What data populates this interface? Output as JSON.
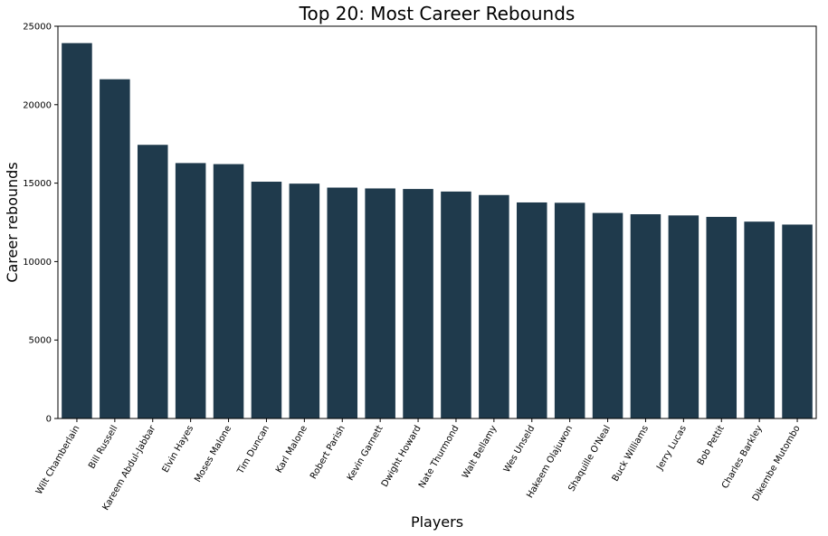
{
  "chart_data": {
    "type": "bar",
    "title": "Top 20: Most Career Rebounds",
    "xlabel": "Players",
    "ylabel": "Career rebounds",
    "ylim": [
      0,
      25000
    ],
    "yticks": [
      0,
      5000,
      10000,
      15000,
      20000,
      25000
    ],
    "grid": false,
    "bar_color": "#1f3a4c",
    "categories": [
      "Wilt Chamberlain",
      "Bill Russell",
      "Kareem Abdul-Jabbar",
      "Elvin Hayes",
      "Moses Malone",
      "Tim Duncan",
      "Karl Malone",
      "Robert Parish",
      "Kevin Garnett",
      "Dwight Howard",
      "Nate Thurmond",
      "Walt Bellamy",
      "Wes Unseld",
      "Hakeem Olajuwon",
      "Shaquille O'Neal",
      "Buck Williams",
      "Jerry Lucas",
      "Bob Pettit",
      "Charles Barkley",
      "Dikembe Mutombo"
    ],
    "values": [
      23924,
      21620,
      17440,
      16279,
      16212,
      15091,
      14968,
      14715,
      14662,
      14627,
      14464,
      14241,
      13769,
      13748,
      13099,
      13017,
      12942,
      12849,
      12546,
      12359
    ]
  }
}
